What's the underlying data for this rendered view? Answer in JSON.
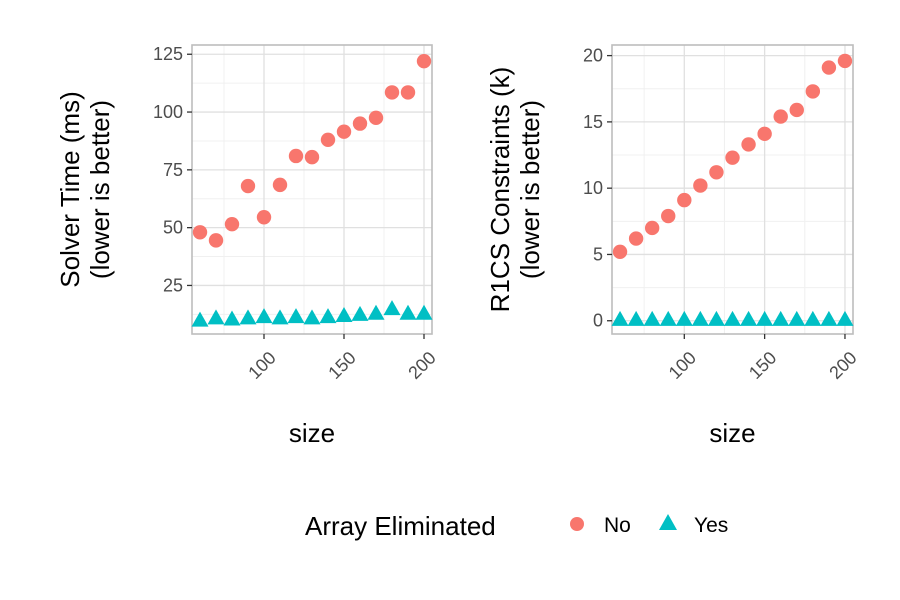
{
  "colors": {
    "No": "#F8766D",
    "Yes": "#00BFC4",
    "grid_major": "#e0e0e0",
    "grid_minor": "#f0f0f0",
    "panel_border": "#bdbdbd"
  },
  "legend": {
    "title": "Array Eliminated",
    "items": [
      {
        "label": "No",
        "shape": "circle"
      },
      {
        "label": "Yes",
        "shape": "triangle"
      }
    ],
    "position": "bottom"
  },
  "chart_data": [
    {
      "type": "scatter",
      "xlabel": "size",
      "ylabel_lines": [
        "Solver Time (ms)",
        "(lower is better)"
      ],
      "xlim": [
        55,
        205
      ],
      "ylim": [
        4,
        129
      ],
      "xticks": [
        100,
        150,
        200
      ],
      "yticks": [
        25,
        50,
        75,
        100,
        125
      ],
      "grid": true,
      "series": [
        {
          "name": "No",
          "x": [
            60,
            70,
            80,
            90,
            100,
            110,
            120,
            130,
            140,
            150,
            160,
            170,
            180,
            190,
            200
          ],
          "y": [
            48,
            44.5,
            51.5,
            68,
            54.5,
            68.5,
            81,
            80.5,
            88,
            91.5,
            95,
            97.5,
            108.5,
            108.5,
            122
          ]
        },
        {
          "name": "Yes",
          "x": [
            60,
            70,
            80,
            90,
            100,
            110,
            120,
            130,
            140,
            150,
            160,
            170,
            180,
            190,
            200
          ],
          "y": [
            10,
            11,
            10.5,
            11,
            11.5,
            11,
            11.5,
            11,
            11.5,
            12,
            12.5,
            13,
            15,
            13,
            13
          ]
        }
      ]
    },
    {
      "type": "scatter",
      "xlabel": "size",
      "ylabel_lines": [
        "R1CS Constraints (k)",
        "(lower is better)"
      ],
      "xlim": [
        55,
        205
      ],
      "ylim": [
        -1,
        20.8
      ],
      "xticks": [
        100,
        150,
        200
      ],
      "yticks": [
        0,
        5,
        10,
        15,
        20
      ],
      "grid": true,
      "series": [
        {
          "name": "No",
          "x": [
            60,
            70,
            80,
            90,
            100,
            110,
            120,
            130,
            140,
            150,
            160,
            170,
            180,
            190,
            200
          ],
          "y": [
            5.2,
            6.2,
            7.0,
            7.9,
            9.1,
            10.2,
            11.2,
            12.3,
            13.3,
            14.1,
            15.4,
            15.9,
            17.3,
            19.1,
            19.6
          ]
        },
        {
          "name": "Yes",
          "x": [
            60,
            70,
            80,
            90,
            100,
            110,
            120,
            130,
            140,
            150,
            160,
            170,
            180,
            190,
            200
          ],
          "y": [
            0.1,
            0.1,
            0.1,
            0.1,
            0.1,
            0.1,
            0.1,
            0.1,
            0.1,
            0.1,
            0.1,
            0.1,
            0.1,
            0.1,
            0.1
          ]
        }
      ]
    }
  ]
}
